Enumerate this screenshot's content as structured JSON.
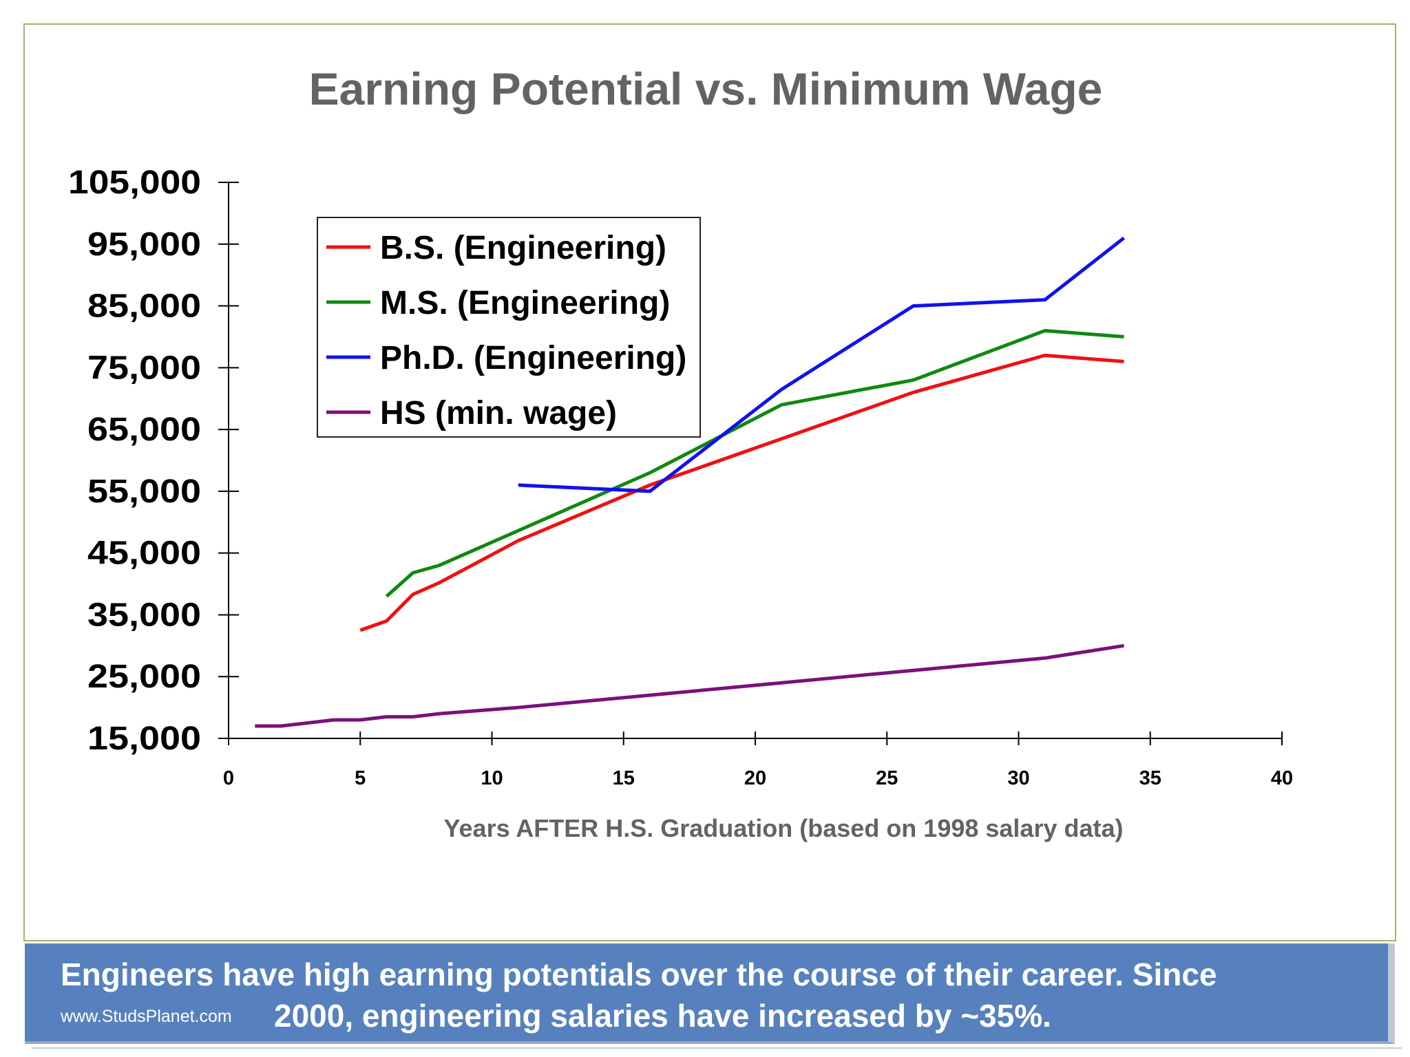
{
  "caption": {
    "line1": "Engineers have high earning potentials over the course of their career. Since",
    "line2": "2000, engineering salaries have increased by ~35%.",
    "watermark": "www.StudsPlanet.com",
    "bg_color": "#5681be"
  },
  "chart_data": {
    "type": "line",
    "title": "Earning Potential vs. Minimum Wage",
    "xlabel": "Years AFTER H.S. Graduation (based on 1998 salary data)",
    "ylabel": "",
    "xlim": [
      0,
      40
    ],
    "ylim": [
      15000,
      105000
    ],
    "x_ticks": [
      0,
      5,
      10,
      15,
      20,
      25,
      30,
      35,
      40
    ],
    "x_tick_labels": [
      "0",
      "5",
      "10",
      "15",
      "20",
      "25",
      "30",
      "35",
      "40"
    ],
    "y_ticks": [
      15000,
      25000,
      35000,
      45000,
      55000,
      65000,
      75000,
      85000,
      95000,
      105000
    ],
    "y_tick_labels": [
      "15,000",
      "25,000",
      "35,000",
      "45,000",
      "55,000",
      "65,000",
      "75,000",
      "85,000",
      "95,000",
      "105,000"
    ],
    "grid": false,
    "legend_position": "top-left",
    "series": [
      {
        "name": "B.S. (Engineering)",
        "color": "#ee1111",
        "points": [
          [
            5,
            32500
          ],
          [
            6,
            34000
          ],
          [
            7,
            38300
          ],
          [
            8,
            40200
          ],
          [
            11,
            47000
          ],
          [
            16,
            56000
          ],
          [
            21,
            63500
          ],
          [
            26,
            71000
          ],
          [
            31,
            77000
          ],
          [
            34,
            76000
          ]
        ]
      },
      {
        "name": "M.S. (Engineering)",
        "color": "#118811",
        "points": [
          [
            6,
            38000
          ],
          [
            7,
            41800
          ],
          [
            8,
            43000
          ],
          [
            16,
            58000
          ],
          [
            21,
            69000
          ],
          [
            26,
            73000
          ],
          [
            31,
            81000
          ],
          [
            34,
            80000
          ]
        ]
      },
      {
        "name": "Ph.D. (Engineering)",
        "color": "#1111ee",
        "points": [
          [
            11,
            56000
          ],
          [
            16,
            55000
          ],
          [
            21,
            71500
          ],
          [
            26,
            85000
          ],
          [
            31,
            86000
          ],
          [
            34,
            96000
          ]
        ]
      },
      {
        "name": "HS (min. wage)",
        "color": "#7a117a",
        "points": [
          [
            1,
            17000
          ],
          [
            2,
            17000
          ],
          [
            4,
            18000
          ],
          [
            5,
            18000
          ],
          [
            6,
            18500
          ],
          [
            7,
            18500
          ],
          [
            8,
            19000
          ],
          [
            11,
            20000
          ],
          [
            16,
            22000
          ],
          [
            21,
            24000
          ],
          [
            26,
            26000
          ],
          [
            31,
            28000
          ],
          [
            34,
            30000
          ]
        ]
      }
    ]
  }
}
